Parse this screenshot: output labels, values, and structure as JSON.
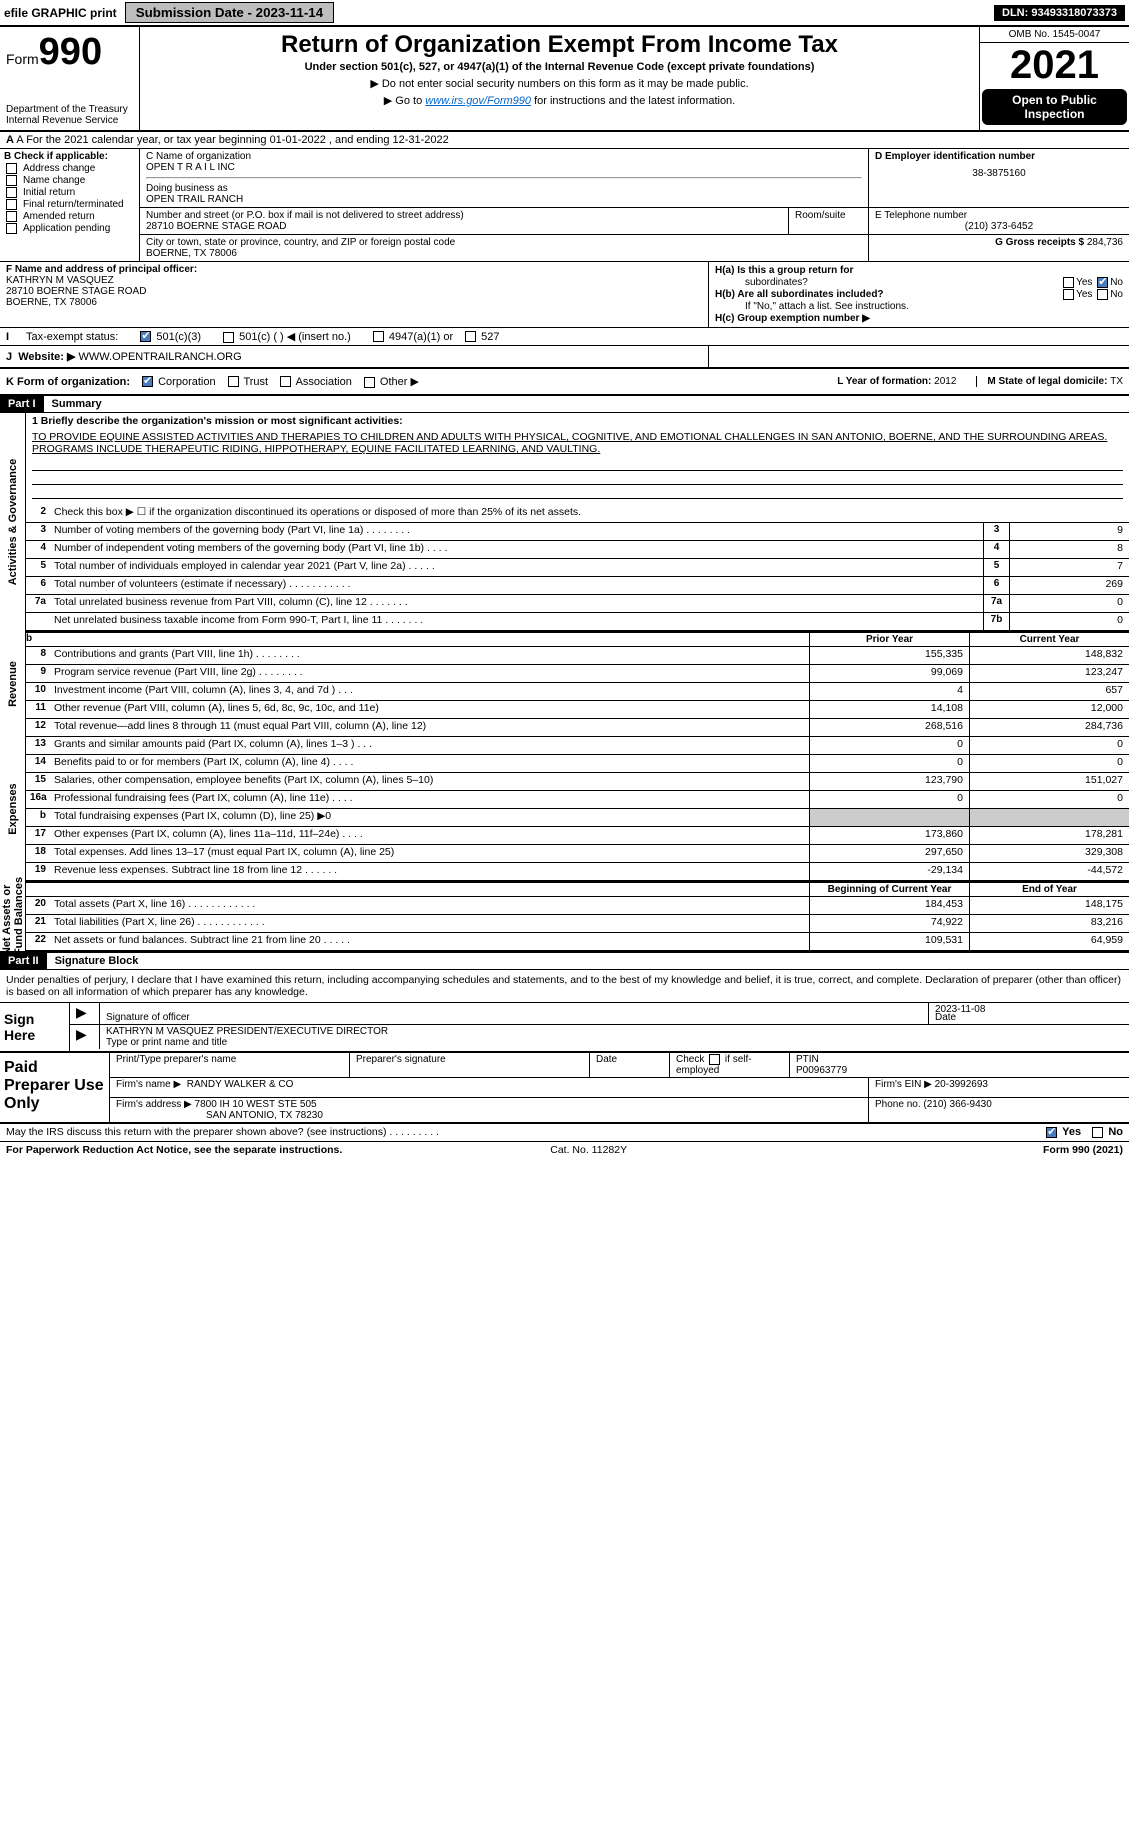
{
  "topbar": {
    "efile": "efile GRAPHIC print",
    "submission": "Submission Date - 2023-11-14",
    "dln": "DLN: 93493318073373"
  },
  "header": {
    "form": "Form",
    "formnum": "990",
    "dept": "Department of the Treasury",
    "irs": "Internal Revenue Service",
    "title": "Return of Organization Exempt From Income Tax",
    "sub": "Under section 501(c), 527, or 4947(a)(1) of the Internal Revenue Code (except private foundations)",
    "note1": "▶ Do not enter social security numbers on this form as it may be made public.",
    "note2_pre": "▶ Go to ",
    "note2_link": "www.irs.gov/Form990",
    "note2_post": " for instructions and the latest information.",
    "omb": "OMB No. 1545-0047",
    "year": "2021",
    "open": "Open to Public Inspection"
  },
  "rowA": "A For the 2021 calendar year, or tax year beginning 01-01-2022    , and ending 12-31-2022",
  "colB": {
    "title": "B Check if applicable:",
    "items": [
      "Address change",
      "Name change",
      "Initial return",
      "Final return/terminated",
      "Amended return",
      "Application pending"
    ]
  },
  "colC": {
    "label": "C Name of organization",
    "name": "OPEN T R A I L INC",
    "dba_label": "Doing business as",
    "dba": "OPEN TRAIL RANCH",
    "street_label": "Number and street (or P.O. box if mail is not delivered to street address)",
    "street": "28710 BOERNE STAGE ROAD",
    "room_label": "Room/suite",
    "city_label": "City or town, state or province, country, and ZIP or foreign postal code",
    "city": "BOERNE, TX  78006"
  },
  "colD": {
    "label": "D Employer identification number",
    "val": "38-3875160"
  },
  "colE": {
    "label": "E Telephone number",
    "val": "(210) 373-6452"
  },
  "colG": {
    "label": "G Gross receipts $",
    "val": "284,736"
  },
  "colF": {
    "label": "F  Name and address of principal officer:",
    "name": "KATHRYN M VASQUEZ",
    "street": "28710 BOERNE STAGE ROAD",
    "city": "BOERNE, TX  78006"
  },
  "colH": {
    "a_label": "H(a)  Is this a group return for",
    "a_label2": "subordinates?",
    "b_label": "H(b)  Are all subordinates included?",
    "b_note": "If \"No,\" attach a list. See instructions.",
    "c_label": "H(c)  Group exemption number ▶",
    "yes": "Yes",
    "no": "No"
  },
  "rowI": {
    "label": "Tax-exempt status:",
    "opts": [
      "501(c)(3)",
      "501(c) (   ) ◀ (insert no.)",
      "4947(a)(1) or",
      "527"
    ]
  },
  "rowJ": {
    "label": "Website: ▶",
    "val": "WWW.OPENTRAILRANCH.ORG"
  },
  "rowK": {
    "label": "K Form of organization:",
    "opts": [
      "Corporation",
      "Trust",
      "Association",
      "Other ▶"
    ],
    "l_label": "L Year of formation: ",
    "l_val": "2012",
    "m_label": "M State of legal domicile: ",
    "m_val": "TX"
  },
  "part1": {
    "hdr": "Part I",
    "title": "Summary"
  },
  "mission": {
    "label": "1  Briefly describe the organization's mission or most significant activities:",
    "text": "TO PROVIDE EQUINE ASSISTED ACTIVITIES AND THERAPIES TO CHILDREN AND ADULTS WITH PHYSICAL, COGNITIVE, AND EMOTIONAL CHALLENGES IN SAN ANTONIO, BOERNE, AND THE SURROUNDING AREAS. PROGRAMS INCLUDE THERAPEUTIC RIDING, HIPPOTHERAPY, EQUINE FACILITATED LEARNING, AND VAULTING."
  },
  "gov": {
    "line2": "Check this box ▶ ☐  if the organization discontinued its operations or disposed of more than 25% of its net assets.",
    "lines": [
      {
        "n": "3",
        "t": "Number of voting members of the governing body (Part VI, line 1a)   .    .    .    .    .    .    .    .",
        "c": "3",
        "v": "9"
      },
      {
        "n": "4",
        "t": "Number of independent voting members of the governing body (Part VI, line 1b)   .    .    .    .",
        "c": "4",
        "v": "8"
      },
      {
        "n": "5",
        "t": "Total number of individuals employed in calendar year 2021 (Part V, line 2a)   .    .    .    .    .",
        "c": "5",
        "v": "7"
      },
      {
        "n": "6",
        "t": "Total number of volunteers (estimate if necessary)    .    .    .    .    .    .    .    .    .    .    .",
        "c": "6",
        "v": "269"
      },
      {
        "n": "7a",
        "t": "Total unrelated business revenue from Part VIII, column (C), line 12   .    .    .    .    .    .    .",
        "c": "7a",
        "v": "0"
      },
      {
        "n": "",
        "t": "Net unrelated business taxable income from Form 990-T, Part I, line 11   .    .    .    .    .    .    .",
        "c": "7b",
        "v": "0"
      }
    ]
  },
  "twocol_hdr": {
    "b": "b",
    "prior": "Prior Year",
    "curr": "Current Year"
  },
  "revenue": [
    {
      "n": "8",
      "t": "Contributions and grants (Part VIII, line 1h)    .    .    .    .    .    .    .    .",
      "p": "155,335",
      "c": "148,832"
    },
    {
      "n": "9",
      "t": "Program service revenue (Part VIII, line 2g)    .    .    .    .    .    .    .    .",
      "p": "99,069",
      "c": "123,247"
    },
    {
      "n": "10",
      "t": "Investment income (Part VIII, column (A), lines 3, 4, and 7d )    .    .    .",
      "p": "4",
      "c": "657"
    },
    {
      "n": "11",
      "t": "Other revenue (Part VIII, column (A), lines 5, 6d, 8c, 9c, 10c, and 11e)",
      "p": "14,108",
      "c": "12,000"
    },
    {
      "n": "12",
      "t": "Total revenue—add lines 8 through 11 (must equal Part VIII, column (A), line 12)",
      "p": "268,516",
      "c": "284,736"
    }
  ],
  "expenses": [
    {
      "n": "13",
      "t": "Grants and similar amounts paid (Part IX, column (A), lines 1–3 )   .    .    .",
      "p": "0",
      "c": "0"
    },
    {
      "n": "14",
      "t": "Benefits paid to or for members (Part IX, column (A), line 4)   .    .    .    .",
      "p": "0",
      "c": "0"
    },
    {
      "n": "15",
      "t": "Salaries, other compensation, employee benefits (Part IX, column (A), lines 5–10)",
      "p": "123,790",
      "c": "151,027"
    },
    {
      "n": "16a",
      "t": "Professional fundraising fees (Part IX, column (A), line 11e)   .    .    .    .",
      "p": "0",
      "c": "0"
    },
    {
      "n": "b",
      "t": "Total fundraising expenses (Part IX, column (D), line 25) ▶0",
      "p": "",
      "c": "",
      "shade": true
    },
    {
      "n": "17",
      "t": "Other expenses (Part IX, column (A), lines 11a–11d, 11f–24e)   .    .    .    .",
      "p": "173,860",
      "c": "178,281"
    },
    {
      "n": "18",
      "t": "Total expenses. Add lines 13–17 (must equal Part IX, column (A), line 25)",
      "p": "297,650",
      "c": "329,308"
    },
    {
      "n": "19",
      "t": "Revenue less expenses. Subtract line 18 from line 12   .    .    .    .    .    .",
      "p": "-29,134",
      "c": "-44,572"
    }
  ],
  "netassets_hdr": {
    "b": "Beginning of Current Year",
    "e": "End of Year"
  },
  "netassets": [
    {
      "n": "20",
      "t": "Total assets (Part X, line 16)   .    .    .    .    .    .    .    .    .    .    .    .",
      "p": "184,453",
      "c": "148,175"
    },
    {
      "n": "21",
      "t": "Total liabilities (Part X, line 26)   .    .    .    .    .    .    .    .    .    .    .    .",
      "p": "74,922",
      "c": "83,216"
    },
    {
      "n": "22",
      "t": "Net assets or fund balances. Subtract line 21 from line 20   .    .    .    .    .",
      "p": "109,531",
      "c": "64,959"
    }
  ],
  "part2": {
    "hdr": "Part II",
    "title": "Signature Block"
  },
  "sig": {
    "penalty": "Under penalties of perjury, I declare that I have examined this return, including accompanying schedules and statements, and to the best of my knowledge and belief, it is true, correct, and complete. Declaration of preparer (other than officer) is based on all information of which preparer has any knowledge.",
    "sign": "Sign Here",
    "sig_officer": "Signature of officer",
    "date": "Date",
    "date_val": "2023-11-08",
    "name": "KATHRYN M VASQUEZ  PRESIDENT/EXECUTIVE DIRECTOR",
    "name_label": "Type or print name and title"
  },
  "prep": {
    "title": "Paid Preparer Use Only",
    "h1": "Print/Type preparer's name",
    "h2": "Preparer's signature",
    "h3": "Date",
    "h4_a": "Check",
    "h4_b": "if self-employed",
    "h5": "PTIN",
    "ptin": "P00963779",
    "firm_label": "Firm's name    ▶",
    "firm": "RANDY WALKER & CO",
    "ein_label": "Firm's EIN ▶",
    "ein": "20-3992693",
    "addr_label": "Firm's address ▶",
    "addr1": "7800 IH 10 WEST STE 505",
    "addr2": "SAN ANTONIO, TX  78230",
    "phone_label": "Phone no.",
    "phone": "(210) 366-9430"
  },
  "discuss": {
    "label": "May the IRS discuss this return with the preparer shown above? (see instructions)   .    .    .    .    .    .    .    .    .",
    "yes": "Yes",
    "no": "No"
  },
  "foot": {
    "l": "For Paperwork Reduction Act Notice, see the separate instructions.",
    "m": "Cat. No. 11282Y",
    "r": "Form 990 (2021)"
  }
}
